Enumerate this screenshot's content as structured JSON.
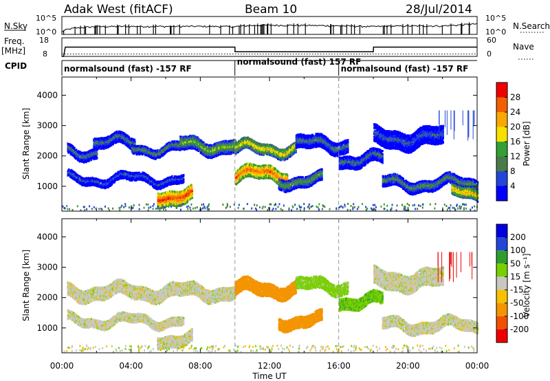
{
  "header": {
    "station": "Adak West (fitACF)",
    "beam": "Beam 10",
    "date": "28/Jul/2014"
  },
  "chart_data": [
    {
      "type": "line",
      "title": "",
      "left_label": "N.Sky",
      "right_label": "N.Search",
      "left_ticks": [
        "10^5",
        "10^0"
      ],
      "right_ticks": [
        "10^5",
        "10^0"
      ],
      "xlim": [
        0,
        24
      ],
      "series": [
        {
          "name": "N.Sky",
          "x": [
            0,
            0.5,
            2,
            4,
            6,
            8,
            9,
            10,
            11,
            12,
            14,
            16,
            18,
            20,
            22,
            23,
            24
          ],
          "values": [
            3,
            30,
            120,
            150,
            140,
            150,
            140,
            120,
            260,
            300,
            280,
            200,
            130,
            190,
            200,
            350,
            700
          ]
        }
      ]
    },
    {
      "type": "line",
      "left_label": "Freq.",
      "left_unit": "[MHz]",
      "right_label": "Nave",
      "left_ticks": [
        "18",
        "8"
      ],
      "right_ticks": [
        "60",
        "0"
      ],
      "xlim": [
        0,
        24
      ],
      "series": [
        {
          "name": "Freq.",
          "x": [
            0,
            0.1,
            0.2,
            10,
            10.01,
            18,
            18.01,
            24
          ],
          "values": [
            8,
            8,
            13,
            13,
            10.5,
            10.5,
            13,
            13
          ]
        },
        {
          "name": "Nave",
          "x": [
            0,
            24
          ],
          "values": [
            13,
            13
          ]
        }
      ]
    },
    {
      "type": "table",
      "left_label": "CPID",
      "segments": [
        {
          "start": 0,
          "end": 10,
          "label": "normalsound (fast) -157 RF"
        },
        {
          "start": 10,
          "end": 16,
          "label": "normalsound (fast) 157 RF"
        },
        {
          "start": 16,
          "end": 24,
          "label": "normalsound (fast) -157 RF"
        }
      ]
    },
    {
      "type": "heatmap",
      "ylabel": "Slant Range [km]",
      "yticks": [
        1000,
        2000,
        3000,
        4000
      ],
      "ylim": [
        180,
        4600
      ],
      "xlim": [
        0,
        24
      ],
      "colorbar": {
        "label": "Power [dB]",
        "ticks": [
          "28",
          "24",
          "20",
          "16",
          "12",
          "8",
          "4"
        ],
        "colors": [
          "#0000ff",
          "#2346d8",
          "#4a7a4a",
          "#33a033",
          "#f7e000",
          "#f8a800",
          "#f06000",
          "#ee0000"
        ]
      },
      "bands": [
        {
          "x0": 0.3,
          "x1": 2.0,
          "center": 2150,
          "width": 350,
          "value": 10
        },
        {
          "x0": 1.8,
          "x1": 4.2,
          "center": 2450,
          "width": 380,
          "value": 10
        },
        {
          "x0": 4.0,
          "x1": 6.8,
          "center": 2250,
          "width": 300,
          "value": 12
        },
        {
          "x0": 6.8,
          "x1": 10.0,
          "center": 2350,
          "width": 450,
          "value": 16
        },
        {
          "x0": 0.3,
          "x1": 7.0,
          "center": 1250,
          "width": 280,
          "value": 8
        },
        {
          "x0": 5.5,
          "x1": 7.5,
          "center": 700,
          "width": 500,
          "value": 28
        },
        {
          "x0": 10.0,
          "x1": 13.0,
          "center": 1400,
          "width": 450,
          "value": 26
        },
        {
          "x0": 10.0,
          "x1": 13.5,
          "center": 2250,
          "width": 380,
          "value": 20
        },
        {
          "x0": 13.5,
          "x1": 16.5,
          "center": 2400,
          "width": 450,
          "value": 10
        },
        {
          "x0": 12.5,
          "x1": 15.0,
          "center": 1200,
          "width": 380,
          "value": 14
        },
        {
          "x0": 16.0,
          "x1": 18.5,
          "center": 1900,
          "width": 420,
          "value": 10
        },
        {
          "x0": 18.0,
          "x1": 22.0,
          "center": 2600,
          "width": 600,
          "value": 8
        },
        {
          "x0": 18.5,
          "x1": 24.0,
          "center": 1100,
          "width": 380,
          "value": 12
        },
        {
          "x0": 22.5,
          "x1": 24.0,
          "center": 750,
          "width": 350,
          "value": 22
        }
      ]
    },
    {
      "type": "heatmap",
      "ylabel": "Slant Range [km]",
      "yticks": [
        1000,
        2000,
        3000,
        4000
      ],
      "ylim": [
        180,
        4600
      ],
      "xlim": [
        0,
        24
      ],
      "xticks": [
        "00:00",
        "04:00",
        "08:00",
        "12:00",
        "16:00",
        "20:00",
        "00:00"
      ],
      "xlabel": "Time UT",
      "colorbar": {
        "label": "Velocity [m s⁻¹]",
        "ticks": [
          "200",
          "100",
          "50",
          "15",
          "-15",
          "-50",
          "-100",
          "-200"
        ],
        "colors": [
          "#ee0000",
          "#f05000",
          "#f39400",
          "#f7c000",
          "#c8c8c0",
          "#79d000",
          "#2f9c2f",
          "#2346d8",
          "#0000e0"
        ]
      },
      "bands": [
        {
          "x0": 0.3,
          "x1": 10.0,
          "center": 2200,
          "width": 450,
          "value": 0
        },
        {
          "x0": 0.3,
          "x1": 7.0,
          "center": 1250,
          "width": 300,
          "value": 0
        },
        {
          "x0": 5.5,
          "x1": 7.5,
          "center": 650,
          "width": 400,
          "value": 0
        },
        {
          "x0": 10.0,
          "x1": 13.5,
          "center": 2300,
          "width": 450,
          "value": -70
        },
        {
          "x0": 12.5,
          "x1": 15.0,
          "center": 1250,
          "width": 400,
          "value": -80
        },
        {
          "x0": 13.5,
          "x1": 16.5,
          "center": 2400,
          "width": 400,
          "value": 30
        },
        {
          "x0": 16.0,
          "x1": 18.5,
          "center": 1900,
          "width": 400,
          "value": 40
        },
        {
          "x0": 18.5,
          "x1": 24.0,
          "center": 1100,
          "width": 380,
          "value": 0
        },
        {
          "x0": 18.0,
          "x1": 22.0,
          "center": 2600,
          "width": 600,
          "value": 0
        }
      ]
    }
  ]
}
